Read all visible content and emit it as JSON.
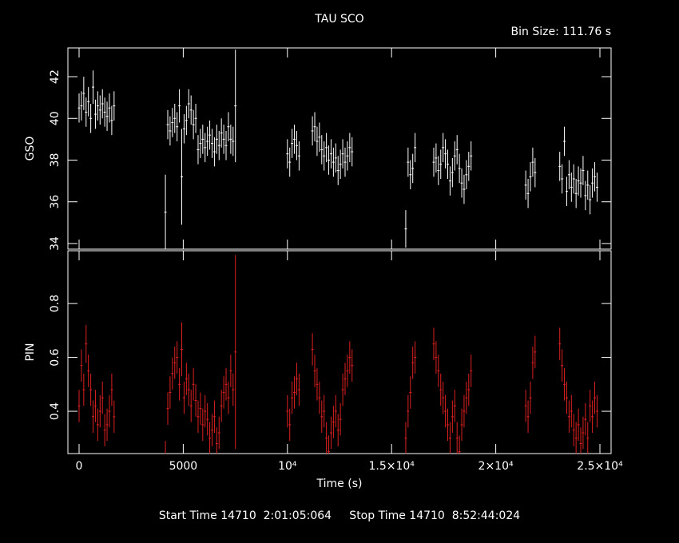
{
  "chart_data": [
    {
      "type": "errorbar",
      "title": "TAU SCO",
      "subtitle": "Bin Size: 111.76 s",
      "ylabel": "GSO",
      "color": "#ffffff",
      "x": [
        0,
        112,
        224,
        336,
        448,
        560,
        672,
        784,
        896,
        1008,
        1120,
        1232,
        1344,
        1456,
        1568,
        1680,
        4144,
        4256,
        4368,
        4480,
        4592,
        4704,
        4816,
        4928,
        5040,
        5152,
        5264,
        5376,
        5488,
        5600,
        5712,
        5824,
        5936,
        6048,
        6160,
        6272,
        6384,
        6496,
        6608,
        6720,
        6832,
        6944,
        7056,
        7168,
        7280,
        7392,
        7504,
        10000,
        10112,
        10224,
        10336,
        10448,
        10560,
        11200,
        11312,
        11424,
        11536,
        11648,
        11760,
        11872,
        11984,
        12096,
        12208,
        12320,
        12432,
        12544,
        12656,
        12768,
        12880,
        12992,
        13104,
        15680,
        15792,
        15904,
        16016,
        16128,
        17024,
        17136,
        17248,
        17360,
        17472,
        17584,
        17696,
        17808,
        17920,
        18032,
        18144,
        18256,
        18368,
        18480,
        18592,
        18704,
        18816,
        21440,
        21552,
        21664,
        21776,
        21888,
        23072,
        23184,
        23296,
        23408,
        23520,
        23632,
        23744,
        23856,
        23968,
        24080,
        24192,
        24304,
        24416,
        24528,
        24640,
        24752,
        24864
      ],
      "values": [
        40.5,
        40.6,
        41.2,
        40.3,
        40.8,
        40.0,
        41.5,
        40.2,
        40.6,
        40.4,
        40.7,
        40.3,
        40.1,
        40.5,
        39.9,
        40.6,
        35.5,
        39.7,
        39.4,
        39.8,
        40.0,
        39.6,
        40.6,
        37.2,
        39.5,
        39.9,
        40.7,
        40.4,
        39.7,
        40.0,
        38.5,
        38.8,
        39.0,
        38.6,
        38.9,
        39.2,
        38.8,
        38.4,
        39.0,
        38.7,
        39.3,
        39.0,
        38.7,
        39.6,
        39.0,
        38.9,
        40.6,
        38.3,
        37.9,
        38.8,
        39.0,
        38.7,
        38.2,
        39.4,
        39.6,
        38.9,
        39.1,
        38.5,
        38.2,
        38.6,
        38.0,
        38.3,
        37.9,
        38.1,
        37.5,
        37.8,
        38.3,
        37.9,
        38.2,
        38.6,
        38.4,
        34.7,
        37.9,
        37.3,
        37.6,
        38.6,
        37.9,
        38.1,
        37.5,
        37.8,
        38.6,
        38.3,
        37.8,
        37.0,
        37.4,
        38.2,
        38.5,
        37.6,
        36.9,
        36.6,
        37.3,
        37.7,
        38.2,
        36.8,
        36.4,
        37.2,
        37.9,
        37.4,
        37.7,
        37.1,
        38.9,
        36.5,
        37.3,
        36.7,
        37.1,
        36.4,
        37.0,
        36.9,
        37.5,
        36.3,
        36.8,
        36.1,
        36.9,
        37.2,
        36.7
      ],
      "errors": [
        0.7,
        0.7,
        0.8,
        0.7,
        0.7,
        0.7,
        0.8,
        0.7,
        0.7,
        0.7,
        0.7,
        0.7,
        0.7,
        0.7,
        0.7,
        0.7,
        1.8,
        0.7,
        0.7,
        0.7,
        0.7,
        0.7,
        0.8,
        2.3,
        0.7,
        0.7,
        0.7,
        0.7,
        0.7,
        0.7,
        0.7,
        0.7,
        0.7,
        0.7,
        0.7,
        0.7,
        0.7,
        0.7,
        0.7,
        0.7,
        0.7,
        0.7,
        0.7,
        0.7,
        0.7,
        0.7,
        2.7,
        0.7,
        0.7,
        0.7,
        0.7,
        0.7,
        0.7,
        0.7,
        0.7,
        0.7,
        0.7,
        0.7,
        0.7,
        0.7,
        0.7,
        0.7,
        0.7,
        0.7,
        0.7,
        0.7,
        0.7,
        0.7,
        0.7,
        0.7,
        0.7,
        0.9,
        0.7,
        0.7,
        0.7,
        0.7,
        0.7,
        0.7,
        0.7,
        0.7,
        0.7,
        0.7,
        0.7,
        0.7,
        0.7,
        0.7,
        0.7,
        0.7,
        0.7,
        0.7,
        0.7,
        0.7,
        0.7,
        0.7,
        0.7,
        0.7,
        0.7,
        0.7,
        0.7,
        0.7,
        0.7,
        0.7,
        0.7,
        0.7,
        0.7,
        0.7,
        0.7,
        0.7,
        0.7,
        0.7,
        0.7,
        0.7,
        0.7,
        0.7,
        0.7
      ],
      "xlim": [
        -537,
        25537
      ],
      "ylim": [
        33.73,
        43.38
      ],
      "yticks": [
        34,
        36,
        38,
        40,
        42
      ]
    },
    {
      "type": "errorbar",
      "ylabel": "PIN",
      "xlabel": "Time (s)",
      "color": "#dd2020",
      "x": [
        0,
        112,
        224,
        336,
        448,
        560,
        672,
        784,
        896,
        1008,
        1120,
        1232,
        1344,
        1456,
        1568,
        1680,
        4144,
        4256,
        4368,
        4480,
        4592,
        4704,
        4816,
        4928,
        5040,
        5152,
        5264,
        5376,
        5488,
        5600,
        5712,
        5824,
        5936,
        6048,
        6160,
        6272,
        6384,
        6496,
        6608,
        6720,
        6832,
        6944,
        7056,
        7168,
        7280,
        7392,
        7504,
        10000,
        10112,
        10224,
        10336,
        10448,
        10560,
        11200,
        11312,
        11424,
        11536,
        11648,
        11760,
        11872,
        11984,
        12096,
        12208,
        12320,
        12432,
        12544,
        12656,
        12768,
        12880,
        12992,
        13104,
        15680,
        15792,
        15904,
        16016,
        16128,
        17024,
        17136,
        17248,
        17360,
        17472,
        17584,
        17696,
        17808,
        17920,
        18032,
        18144,
        18256,
        18368,
        18480,
        18592,
        18704,
        18816,
        21440,
        21552,
        21664,
        21776,
        21888,
        23072,
        23184,
        23296,
        23408,
        23520,
        23632,
        23744,
        23856,
        23968,
        24080,
        24192,
        24304,
        24416,
        24528,
        24640,
        24752,
        24864
      ],
      "values": [
        0.42,
        0.57,
        0.48,
        0.65,
        0.55,
        0.48,
        0.38,
        0.42,
        0.35,
        0.4,
        0.45,
        0.33,
        0.35,
        0.4,
        0.48,
        0.38,
        0.22,
        0.41,
        0.47,
        0.54,
        0.58,
        0.6,
        0.5,
        0.63,
        0.45,
        0.52,
        0.48,
        0.42,
        0.5,
        0.44,
        0.38,
        0.41,
        0.35,
        0.4,
        0.37,
        0.3,
        0.33,
        0.38,
        0.28,
        0.32,
        0.42,
        0.47,
        0.5,
        0.45,
        0.55,
        0.48,
        0.62,
        0.4,
        0.35,
        0.45,
        0.47,
        0.52,
        0.48,
        0.63,
        0.55,
        0.5,
        0.45,
        0.38,
        0.4,
        0.3,
        0.25,
        0.32,
        0.36,
        0.4,
        0.33,
        0.37,
        0.48,
        0.52,
        0.55,
        0.6,
        0.57,
        0.3,
        0.4,
        0.47,
        0.58,
        0.6,
        0.65,
        0.6,
        0.55,
        0.48,
        0.45,
        0.4,
        0.35,
        0.3,
        0.38,
        0.42,
        0.3,
        0.25,
        0.35,
        0.4,
        0.45,
        0.48,
        0.55,
        0.42,
        0.38,
        0.45,
        0.58,
        0.62,
        0.65,
        0.57,
        0.5,
        0.45,
        0.38,
        0.4,
        0.33,
        0.3,
        0.35,
        0.28,
        0.32,
        0.37,
        0.3,
        0.42,
        0.38,
        0.45,
        0.4
      ],
      "errors": [
        0.06,
        0.06,
        0.06,
        0.07,
        0.06,
        0.06,
        0.06,
        0.06,
        0.06,
        0.06,
        0.06,
        0.06,
        0.06,
        0.06,
        0.06,
        0.06,
        0.07,
        0.06,
        0.06,
        0.06,
        0.06,
        0.06,
        0.06,
        0.1,
        0.06,
        0.06,
        0.06,
        0.06,
        0.06,
        0.06,
        0.06,
        0.06,
        0.06,
        0.06,
        0.06,
        0.06,
        0.06,
        0.06,
        0.06,
        0.06,
        0.06,
        0.06,
        0.06,
        0.06,
        0.06,
        0.06,
        0.36,
        0.06,
        0.06,
        0.06,
        0.06,
        0.06,
        0.06,
        0.06,
        0.06,
        0.06,
        0.06,
        0.06,
        0.06,
        0.06,
        0.06,
        0.06,
        0.06,
        0.06,
        0.06,
        0.06,
        0.06,
        0.06,
        0.06,
        0.06,
        0.06,
        0.06,
        0.06,
        0.06,
        0.06,
        0.06,
        0.06,
        0.06,
        0.06,
        0.06,
        0.06,
        0.06,
        0.06,
        0.06,
        0.06,
        0.06,
        0.06,
        0.06,
        0.06,
        0.06,
        0.06,
        0.06,
        0.06,
        0.06,
        0.06,
        0.06,
        0.06,
        0.06,
        0.06,
        0.06,
        0.06,
        0.06,
        0.06,
        0.06,
        0.06,
        0.06,
        0.06,
        0.06,
        0.06,
        0.06,
        0.06,
        0.06,
        0.06,
        0.06,
        0.06
      ],
      "xlim": [
        -537,
        25537
      ],
      "ylim": [
        0.243,
        0.996
      ],
      "yticks": [
        0.4,
        0.6,
        0.8
      ],
      "xticks": [
        0,
        5000,
        {
          "value": 10000,
          "label": "10⁴"
        },
        {
          "value": 15000,
          "label": "1.5×10⁴"
        },
        {
          "value": 20000,
          "label": "2×10⁴"
        },
        {
          "value": 25000,
          "label": "2.5×10⁴"
        }
      ]
    }
  ],
  "footer": "Start Time 14710  2:01:05:064     Stop Time 14710  8:52:44:024"
}
